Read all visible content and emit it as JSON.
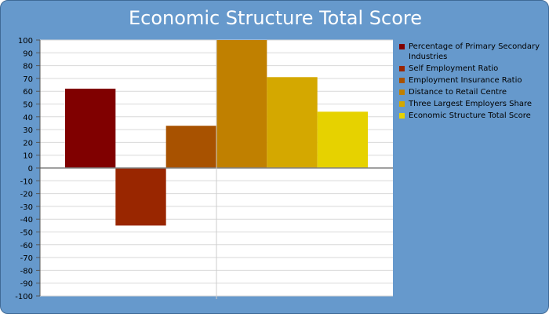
{
  "chart_data": {
    "type": "bar",
    "title": "Economic Structure Total Score",
    "xlabel": "",
    "ylabel": "",
    "ylim": [
      -100,
      100
    ],
    "ytick_step": 10,
    "grid": true,
    "legend_position": "right",
    "series": [
      {
        "name": "Percentage of Primary Secondary Industries",
        "value": 62,
        "color": "#800000"
      },
      {
        "name": "Self Employment Ratio",
        "value": -45,
        "color": "#992600"
      },
      {
        "name": "Employment Insurance Ratio",
        "value": 33,
        "color": "#a85200"
      },
      {
        "name": "Distance to Retail Centre",
        "value": 100,
        "color": "#c08000"
      },
      {
        "name": "Three Largest Employers Share",
        "value": 71,
        "color": "#d4a800"
      },
      {
        "name": "Economic Structure Total Score",
        "value": 44,
        "color": "#e6d200"
      }
    ]
  }
}
